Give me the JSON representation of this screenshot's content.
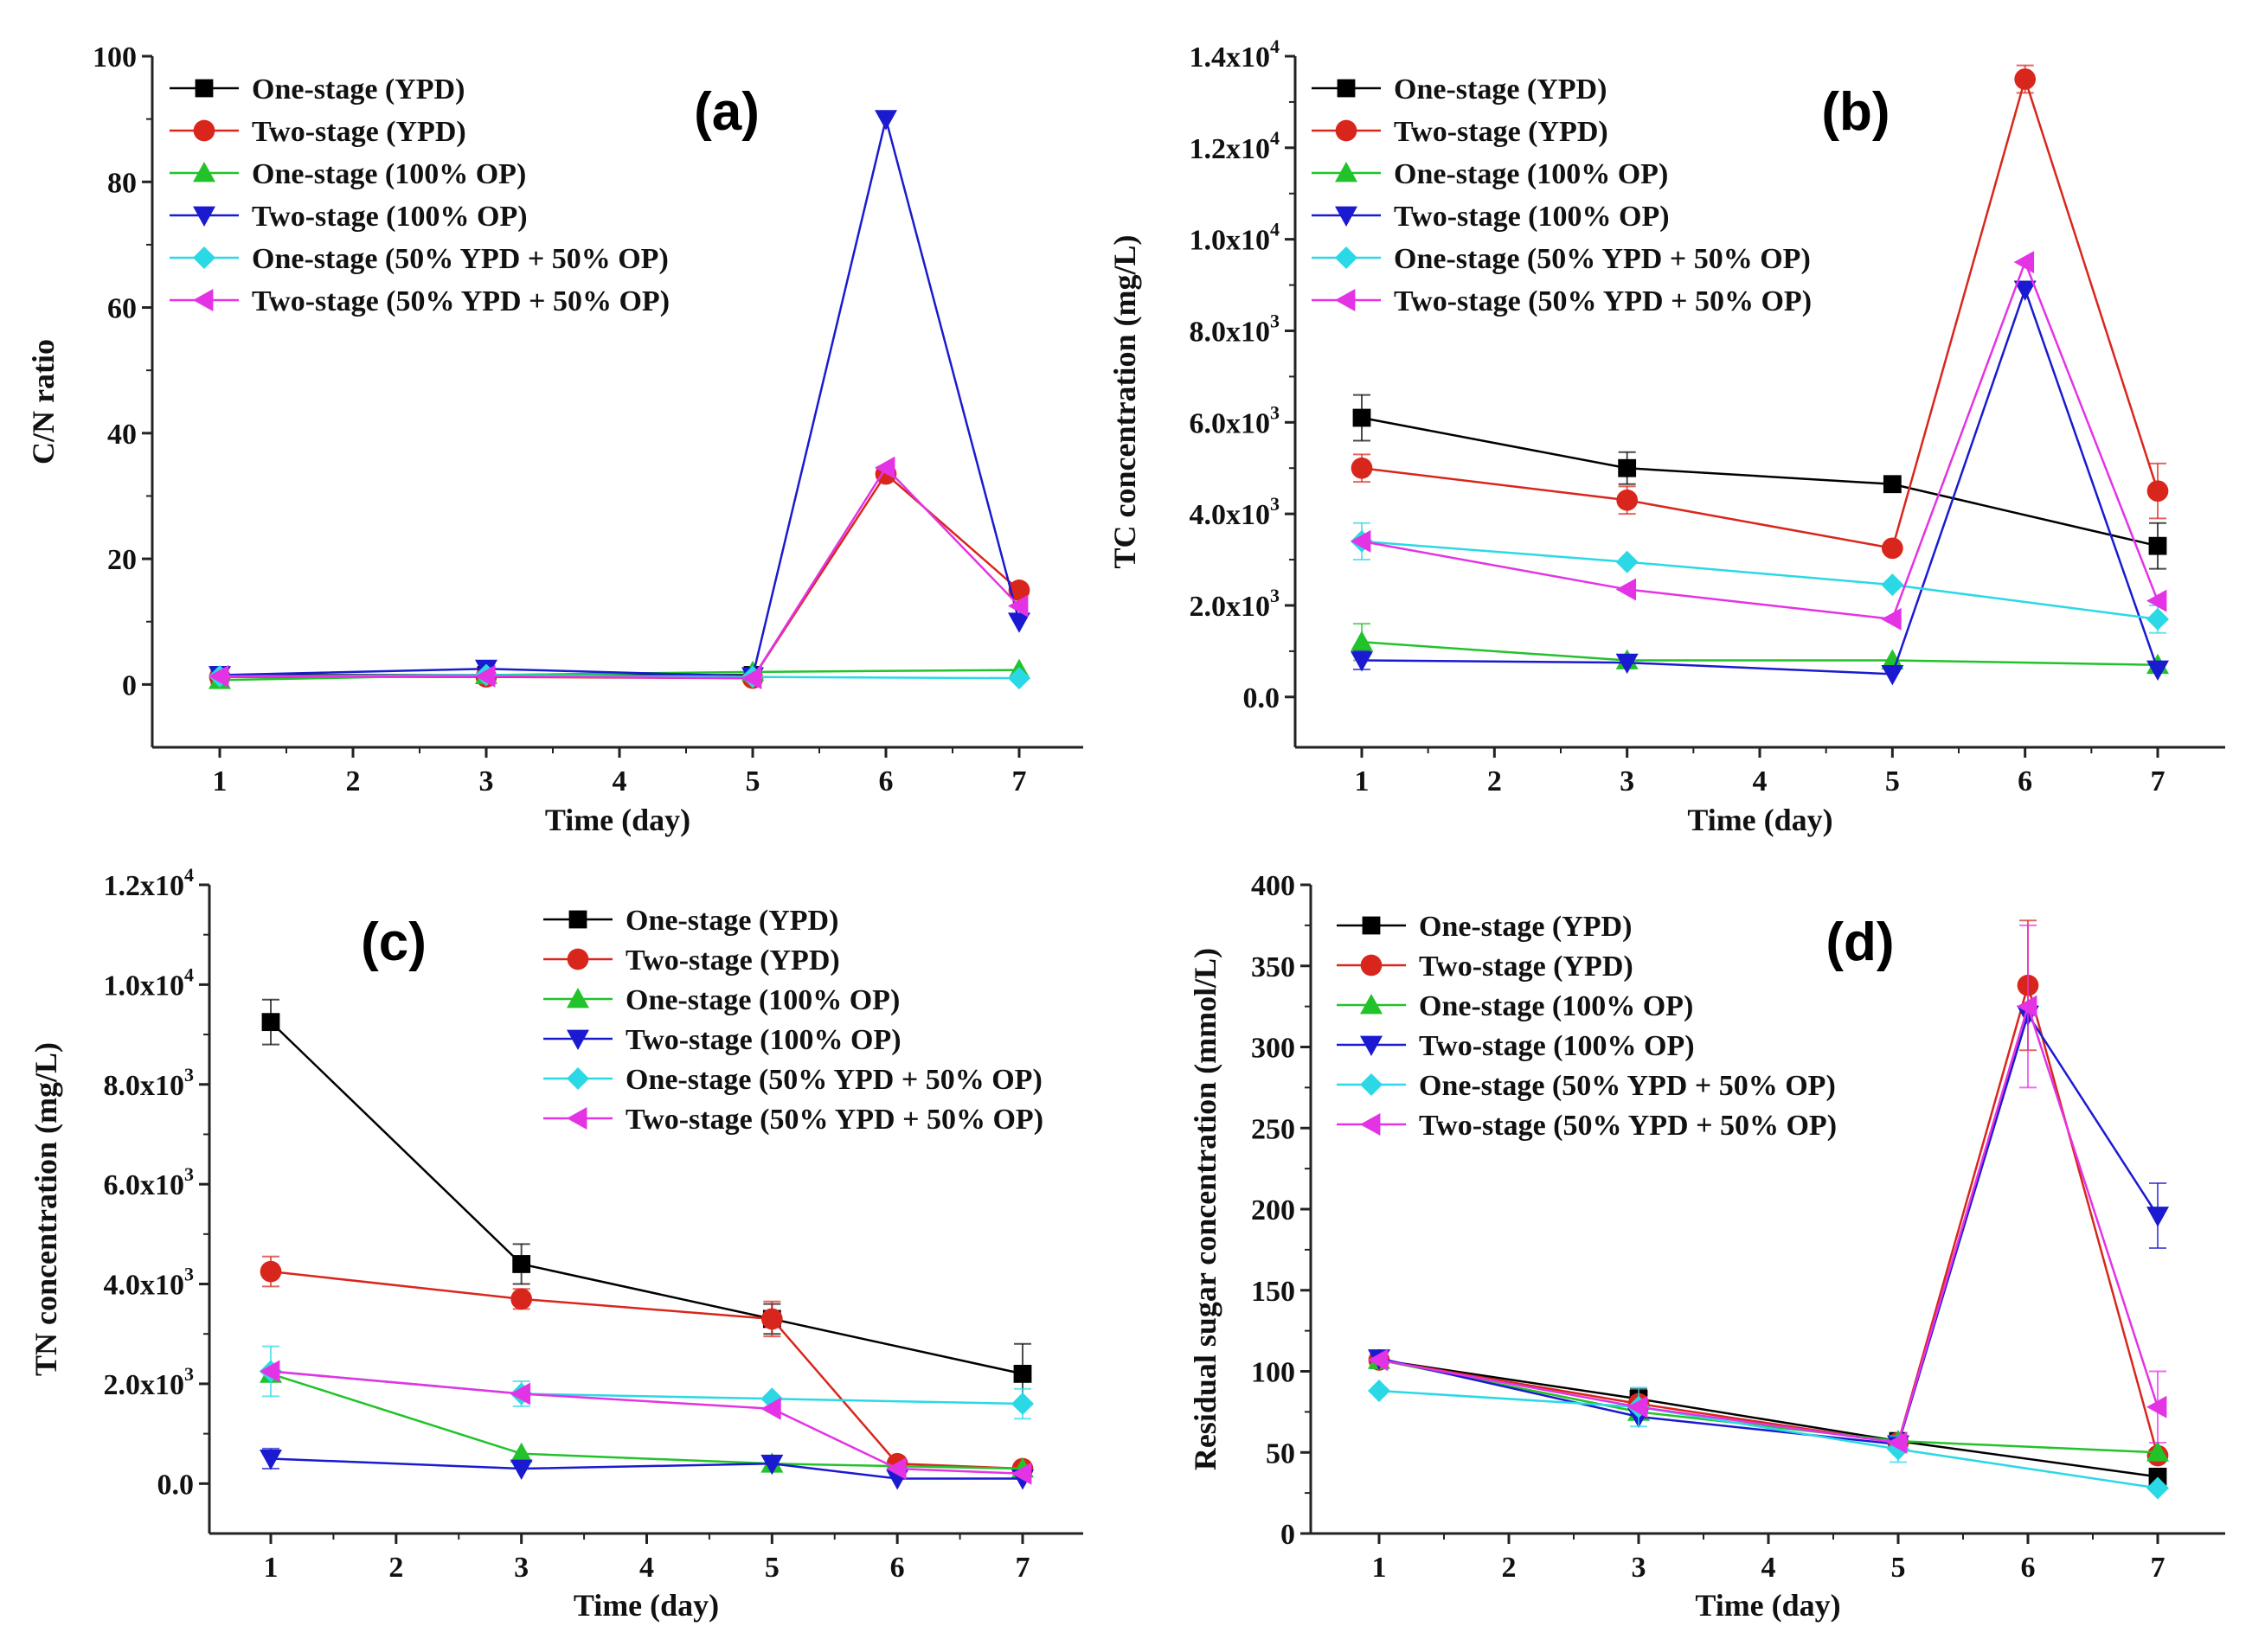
{
  "figure": {
    "series_styles": [
      {
        "name": "One-stage (YPD)",
        "color": "#000000",
        "marker": "square"
      },
      {
        "name": "Two-stage (YPD)",
        "color": "#d9261c",
        "marker": "circle"
      },
      {
        "name": "One-stage (100% OP)",
        "color": "#22c32a",
        "marker": "triangle-up"
      },
      {
        "name": "Two-stage (100% OP)",
        "color": "#1a1ad0",
        "marker": "triangle-down"
      },
      {
        "name": "One-stage (50% YPD + 50% OP)",
        "color": "#2bd8e6",
        "marker": "diamond"
      },
      {
        "name": "Two-stage (50% YPD + 50% OP)",
        "color": "#e433e4",
        "marker": "triangle-left"
      }
    ]
  },
  "chart_data": [
    {
      "panel": "(a)",
      "type": "line",
      "xlabel": "Time (day)",
      "ylabel": "C/N ratio",
      "x_categories": [
        "1",
        "2",
        "3",
        "4",
        "5",
        "6",
        "7"
      ],
      "ylim": [
        -10,
        100
      ],
      "y_ticks": [
        {
          "value": 0,
          "label": "0"
        },
        {
          "value": 20,
          "label": "20"
        },
        {
          "value": 40,
          "label": "40"
        },
        {
          "value": 60,
          "label": "60"
        },
        {
          "value": 80,
          "label": "80"
        },
        {
          "value": 100,
          "label": "100"
        }
      ],
      "legend_position": "top-left",
      "series": [
        {
          "name": "One-stage (YPD)",
          "points": [
            {
              "x": 1,
              "y": 1.5
            },
            {
              "x": 3,
              "y": 1.5
            },
            {
              "x": 5,
              "y": 1.5
            }
          ]
        },
        {
          "name": "Two-stage (YPD)",
          "points": [
            {
              "x": 1,
              "y": 1.2
            },
            {
              "x": 3,
              "y": 1.2
            },
            {
              "x": 5,
              "y": 1
            },
            {
              "x": 6,
              "y": 33.5
            },
            {
              "x": 7,
              "y": 15
            }
          ]
        },
        {
          "name": "One-stage (100% OP)",
          "points": [
            {
              "x": 1,
              "y": 0.7
            },
            {
              "x": 3,
              "y": 1.5
            },
            {
              "x": 5,
              "y": 2
            },
            {
              "x": 7,
              "y": 2.3
            }
          ]
        },
        {
          "name": "Two-stage (100% OP)",
          "points": [
            {
              "x": 1,
              "y": 1.5
            },
            {
              "x": 3,
              "y": 2.5
            },
            {
              "x": 5,
              "y": 1.3
            },
            {
              "x": 6,
              "y": 90
            },
            {
              "x": 7,
              "y": 10
            }
          ]
        },
        {
          "name": "One-stage (50% YPD + 50% OP)",
          "points": [
            {
              "x": 1,
              "y": 1.3
            },
            {
              "x": 3,
              "y": 1.5
            },
            {
              "x": 5,
              "y": 1.2
            },
            {
              "x": 7,
              "y": 1
            }
          ]
        },
        {
          "name": "Two-stage (50% YPD + 50% OP)",
          "points": [
            {
              "x": 1,
              "y": 1.3
            },
            {
              "x": 3,
              "y": 1.3
            },
            {
              "x": 5,
              "y": 1
            },
            {
              "x": 6,
              "y": 34.5
            },
            {
              "x": 7,
              "y": 12.5
            }
          ]
        }
      ]
    },
    {
      "panel": "(b)",
      "type": "line",
      "xlabel": "Time (day)",
      "ylabel": "TC concentration (mg/L)",
      "x_categories": [
        "1",
        "2",
        "3",
        "4",
        "5",
        "6",
        "7"
      ],
      "ylim": [
        -1100,
        14000
      ],
      "y_ticks": [
        {
          "value": 0,
          "label": "0.0"
        },
        {
          "value": 2000,
          "label": "2.0x10",
          "sup": "3"
        },
        {
          "value": 4000,
          "label": "4.0x10",
          "sup": "3"
        },
        {
          "value": 6000,
          "label": "6.0x10",
          "sup": "3"
        },
        {
          "value": 8000,
          "label": "8.0x10",
          "sup": "3"
        },
        {
          "value": 10000,
          "label": "1.0x10",
          "sup": "4"
        },
        {
          "value": 12000,
          "label": "1.2x10",
          "sup": "4"
        },
        {
          "value": 14000,
          "label": "1.4x10",
          "sup": "4"
        }
      ],
      "legend_position": "top-left",
      "series": [
        {
          "name": "One-stage (YPD)",
          "points": [
            {
              "x": 1,
              "y": 6100,
              "err": 500
            },
            {
              "x": 3,
              "y": 5000,
              "err": 350
            },
            {
              "x": 5,
              "y": 4650
            },
            {
              "x": 7,
              "y": 3300,
              "err": 500
            }
          ]
        },
        {
          "name": "Two-stage (YPD)",
          "points": [
            {
              "x": 1,
              "y": 5000,
              "err": 300
            },
            {
              "x": 3,
              "y": 4300,
              "err": 300
            },
            {
              "x": 5,
              "y": 3250
            },
            {
              "x": 6,
              "y": 13500,
              "err": 300
            },
            {
              "x": 7,
              "y": 4500,
              "err": 600
            }
          ]
        },
        {
          "name": "One-stage (100% OP)",
          "points": [
            {
              "x": 1,
              "y": 1200,
              "err": 400
            },
            {
              "x": 3,
              "y": 800
            },
            {
              "x": 5,
              "y": 800
            },
            {
              "x": 7,
              "y": 700
            }
          ]
        },
        {
          "name": "Two-stage (100% OP)",
          "points": [
            {
              "x": 1,
              "y": 800,
              "err": 200
            },
            {
              "x": 3,
              "y": 750
            },
            {
              "x": 5,
              "y": 500
            },
            {
              "x": 6,
              "y": 8900
            },
            {
              "x": 7,
              "y": 600
            }
          ]
        },
        {
          "name": "One-stage (50% YPD + 50% OP)",
          "points": [
            {
              "x": 1,
              "y": 3400,
              "err": 400
            },
            {
              "x": 3,
              "y": 2950
            },
            {
              "x": 5,
              "y": 2450
            },
            {
              "x": 7,
              "y": 1700,
              "err": 300
            }
          ]
        },
        {
          "name": "Two-stage (50% YPD + 50% OP)",
          "points": [
            {
              "x": 1,
              "y": 3400
            },
            {
              "x": 3,
              "y": 2350
            },
            {
              "x": 5,
              "y": 1700
            },
            {
              "x": 6,
              "y": 9500
            },
            {
              "x": 7,
              "y": 2100
            }
          ]
        }
      ]
    },
    {
      "panel": "(c)",
      "type": "line",
      "xlabel": "Time (day)",
      "ylabel": "TN concentration (mg/L)",
      "x_categories": [
        "1",
        "2",
        "3",
        "4",
        "5",
        "6",
        "7"
      ],
      "ylim": [
        -1000,
        12000
      ],
      "y_ticks": [
        {
          "value": 0,
          "label": "0.0"
        },
        {
          "value": 2000,
          "label": "2.0x10",
          "sup": "3"
        },
        {
          "value": 4000,
          "label": "4.0x10",
          "sup": "3"
        },
        {
          "value": 6000,
          "label": "6.0x10",
          "sup": "3"
        },
        {
          "value": 8000,
          "label": "8.0x10",
          "sup": "3"
        },
        {
          "value": 10000,
          "label": "1.0x10",
          "sup": "4"
        },
        {
          "value": 12000,
          "label": "1.2x10",
          "sup": "4"
        }
      ],
      "legend_position": "top-right",
      "series": [
        {
          "name": "One-stage (YPD)",
          "points": [
            {
              "x": 1,
              "y": 9250,
              "err": 450
            },
            {
              "x": 3,
              "y": 4400,
              "err": 400
            },
            {
              "x": 5,
              "y": 3300,
              "err": 300
            },
            {
              "x": 7,
              "y": 2200,
              "err": 600
            }
          ]
        },
        {
          "name": "Two-stage (YPD)",
          "points": [
            {
              "x": 1,
              "y": 4250,
              "err": 300
            },
            {
              "x": 3,
              "y": 3700,
              "err": 200
            },
            {
              "x": 5,
              "y": 3300,
              "err": 350
            },
            {
              "x": 6,
              "y": 400
            },
            {
              "x": 7,
              "y": 300
            }
          ]
        },
        {
          "name": "One-stage (100% OP)",
          "points": [
            {
              "x": 1,
              "y": 2200
            },
            {
              "x": 3,
              "y": 600
            },
            {
              "x": 5,
              "y": 400
            },
            {
              "x": 7,
              "y": 300
            }
          ]
        },
        {
          "name": "Two-stage (100% OP)",
          "points": [
            {
              "x": 1,
              "y": 500,
              "err": 200
            },
            {
              "x": 3,
              "y": 300
            },
            {
              "x": 5,
              "y": 400
            },
            {
              "x": 6,
              "y": 100
            },
            {
              "x": 7,
              "y": 100
            }
          ]
        },
        {
          "name": "One-stage (50% YPD + 50% OP)",
          "points": [
            {
              "x": 1,
              "y": 2250,
              "err": 500
            },
            {
              "x": 3,
              "y": 1800,
              "err": 250
            },
            {
              "x": 5,
              "y": 1700
            },
            {
              "x": 7,
              "y": 1600,
              "err": 300
            }
          ]
        },
        {
          "name": "Two-stage (50% YPD + 50% OP)",
          "points": [
            {
              "x": 1,
              "y": 2250
            },
            {
              "x": 3,
              "y": 1800
            },
            {
              "x": 5,
              "y": 1500
            },
            {
              "x": 6,
              "y": 300
            },
            {
              "x": 7,
              "y": 200
            }
          ]
        }
      ]
    },
    {
      "panel": "(d)",
      "type": "line",
      "xlabel": "Time (day)",
      "ylabel": "Residual sugar concentration (mmol/L)",
      "x_categories": [
        "1",
        "2",
        "3",
        "4",
        "5",
        "6",
        "7"
      ],
      "ylim": [
        0,
        400
      ],
      "y_ticks": [
        {
          "value": 0,
          "label": "0"
        },
        {
          "value": 50,
          "label": "50"
        },
        {
          "value": 100,
          "label": "100"
        },
        {
          "value": 150,
          "label": "150"
        },
        {
          "value": 200,
          "label": "200"
        },
        {
          "value": 250,
          "label": "250"
        },
        {
          "value": 300,
          "label": "300"
        },
        {
          "value": 350,
          "label": "350"
        },
        {
          "value": 400,
          "label": "400"
        }
      ],
      "legend_position": "top-left",
      "series": [
        {
          "name": "One-stage (YPD)",
          "points": [
            {
              "x": 1,
              "y": 107
            },
            {
              "x": 3,
              "y": 83,
              "err": 6
            },
            {
              "x": 5,
              "y": 57
            },
            {
              "x": 7,
              "y": 35
            }
          ]
        },
        {
          "name": "Two-stage (YPD)",
          "points": [
            {
              "x": 1,
              "y": 107
            },
            {
              "x": 3,
              "y": 80
            },
            {
              "x": 5,
              "y": 56
            },
            {
              "x": 6,
              "y": 338,
              "err": 40
            },
            {
              "x": 7,
              "y": 48
            }
          ]
        },
        {
          "name": "One-stage (100% OP)",
          "points": [
            {
              "x": 1,
              "y": 107
            },
            {
              "x": 3,
              "y": 75
            },
            {
              "x": 5,
              "y": 57
            },
            {
              "x": 7,
              "y": 50
            }
          ]
        },
        {
          "name": "Two-stage (100% OP)",
          "points": [
            {
              "x": 1,
              "y": 108
            },
            {
              "x": 3,
              "y": 72
            },
            {
              "x": 5,
              "y": 55
            },
            {
              "x": 6,
              "y": 320
            },
            {
              "x": 7,
              "y": 196,
              "err": 20
            }
          ]
        },
        {
          "name": "One-stage (50% YPD + 50% OP)",
          "points": [
            {
              "x": 1,
              "y": 88
            },
            {
              "x": 3,
              "y": 78,
              "err": 12
            },
            {
              "x": 5,
              "y": 52,
              "err": 8
            },
            {
              "x": 7,
              "y": 28
            }
          ]
        },
        {
          "name": "Two-stage (50% YPD + 50% OP)",
          "points": [
            {
              "x": 1,
              "y": 107
            },
            {
              "x": 3,
              "y": 78
            },
            {
              "x": 5,
              "y": 56
            },
            {
              "x": 6,
              "y": 325,
              "err": 50
            },
            {
              "x": 7,
              "y": 78,
              "err": 22
            }
          ]
        }
      ]
    }
  ]
}
